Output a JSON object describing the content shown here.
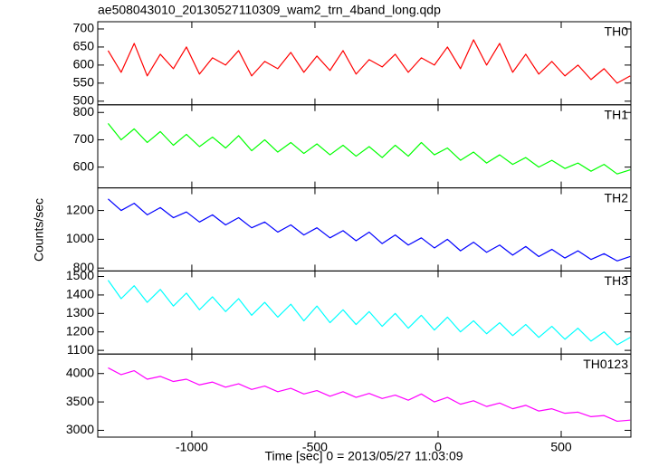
{
  "title": "ae508043010_20130527110309_wam2_trn_4band_long.qdp",
  "ylabel": "Counts/sec",
  "xlabel": "Time [sec] 0 = 2013/05/27 11:03:09",
  "chart_data": [
    {
      "type": "line",
      "xlim": [
        -1382,
        783
      ],
      "xticks": [
        -1000,
        -500,
        0,
        500
      ],
      "ylim": [
        490,
        720
      ],
      "yticks": [
        500,
        550,
        600,
        650,
        700
      ],
      "x": [
        -1340,
        -1287,
        -1234,
        -1181,
        -1128,
        -1075,
        -1022,
        -969,
        -916,
        -863,
        -810,
        -757,
        -704,
        -651,
        -598,
        -545,
        -492,
        -439,
        -386,
        -333,
        -280,
        -227,
        -174,
        -121,
        -68,
        -15,
        38,
        91,
        144,
        197,
        250,
        303,
        356,
        409,
        462,
        515,
        568,
        621,
        674,
        727,
        780
      ],
      "series": [
        {
          "name": "TH0",
          "color": "#ff0000",
          "values": [
            640,
            580,
            660,
            570,
            630,
            590,
            650,
            575,
            620,
            600,
            640,
            570,
            610,
            590,
            635,
            580,
            625,
            585,
            640,
            575,
            615,
            595,
            630,
            580,
            620,
            600,
            650,
            590,
            670,
            600,
            660,
            580,
            630,
            575,
            610,
            570,
            600,
            560,
            590,
            550,
            570
          ]
        }
      ]
    },
    {
      "type": "line",
      "xlim": [
        -1382,
        783
      ],
      "xticks": [
        -1000,
        -500,
        0,
        500
      ],
      "ylim": [
        524,
        828
      ],
      "yticks": [
        600,
        700,
        800
      ],
      "x": [
        -1340,
        -1287,
        -1234,
        -1181,
        -1128,
        -1075,
        -1022,
        -969,
        -916,
        -863,
        -810,
        -757,
        -704,
        -651,
        -598,
        -545,
        -492,
        -439,
        -386,
        -333,
        -280,
        -227,
        -174,
        -121,
        -68,
        -15,
        38,
        91,
        144,
        197,
        250,
        303,
        356,
        409,
        462,
        515,
        568,
        621,
        674,
        727,
        780
      ],
      "series": [
        {
          "name": "TH1",
          "color": "#00ff00",
          "values": [
            760,
            700,
            740,
            690,
            730,
            680,
            720,
            675,
            710,
            670,
            715,
            660,
            700,
            655,
            690,
            650,
            685,
            645,
            680,
            640,
            675,
            635,
            680,
            640,
            690,
            645,
            670,
            625,
            655,
            615,
            645,
            610,
            635,
            600,
            625,
            595,
            615,
            585,
            610,
            575,
            590
          ]
        }
      ]
    },
    {
      "type": "line",
      "xlim": [
        -1382,
        783
      ],
      "xticks": [
        -1000,
        -500,
        0,
        500
      ],
      "ylim": [
        780,
        1357
      ],
      "yticks": [
        800,
        1000,
        1200
      ],
      "x": [
        -1340,
        -1287,
        -1234,
        -1181,
        -1128,
        -1075,
        -1022,
        -969,
        -916,
        -863,
        -810,
        -757,
        -704,
        -651,
        -598,
        -545,
        -492,
        -439,
        -386,
        -333,
        -280,
        -227,
        -174,
        -121,
        -68,
        -15,
        38,
        91,
        144,
        197,
        250,
        303,
        356,
        409,
        462,
        515,
        568,
        621,
        674,
        727,
        780
      ],
      "series": [
        {
          "name": "TH2",
          "color": "#0000ff",
          "values": [
            1280,
            1200,
            1250,
            1170,
            1220,
            1150,
            1190,
            1120,
            1170,
            1100,
            1150,
            1080,
            1120,
            1050,
            1100,
            1030,
            1080,
            1010,
            1060,
            990,
            1050,
            970,
            1030,
            960,
            1010,
            940,
            1000,
            920,
            980,
            910,
            960,
            890,
            950,
            880,
            930,
            870,
            920,
            860,
            900,
            850,
            880
          ]
        }
      ]
    },
    {
      "type": "line",
      "xlim": [
        -1382,
        783
      ],
      "xticks": [
        -1000,
        -500,
        0,
        500
      ],
      "ylim": [
        1080,
        1530
      ],
      "yticks": [
        1100,
        1200,
        1300,
        1400,
        1500
      ],
      "x": [
        -1340,
        -1287,
        -1234,
        -1181,
        -1128,
        -1075,
        -1022,
        -969,
        -916,
        -863,
        -810,
        -757,
        -704,
        -651,
        -598,
        -545,
        -492,
        -439,
        -386,
        -333,
        -280,
        -227,
        -174,
        -121,
        -68,
        -15,
        38,
        91,
        144,
        197,
        250,
        303,
        356,
        409,
        462,
        515,
        568,
        621,
        674,
        727,
        780
      ],
      "series": [
        {
          "name": "TH3",
          "color": "#00ffff",
          "values": [
            1480,
            1380,
            1450,
            1360,
            1430,
            1340,
            1410,
            1320,
            1390,
            1310,
            1380,
            1290,
            1360,
            1280,
            1350,
            1260,
            1340,
            1250,
            1320,
            1240,
            1310,
            1230,
            1300,
            1220,
            1290,
            1210,
            1280,
            1200,
            1260,
            1190,
            1250,
            1180,
            1240,
            1170,
            1230,
            1160,
            1220,
            1150,
            1200,
            1130,
            1170
          ]
        }
      ]
    },
    {
      "type": "line",
      "xlim": [
        -1382,
        783
      ],
      "xticks": [
        -1000,
        -500,
        0,
        500
      ],
      "ylim": [
        2880,
        4343
      ],
      "yticks": [
        3000,
        3500,
        4000
      ],
      "x": [
        -1340,
        -1287,
        -1234,
        -1181,
        -1128,
        -1075,
        -1022,
        -969,
        -916,
        -863,
        -810,
        -757,
        -704,
        -651,
        -598,
        -545,
        -492,
        -439,
        -386,
        -333,
        -280,
        -227,
        -174,
        -121,
        -68,
        -15,
        38,
        91,
        144,
        197,
        250,
        303,
        356,
        409,
        462,
        515,
        568,
        621,
        674,
        727,
        780
      ],
      "series": [
        {
          "name": "TH0123",
          "color": "#ff00ff",
          "values": [
            4100,
            3980,
            4050,
            3900,
            3950,
            3860,
            3900,
            3800,
            3850,
            3760,
            3820,
            3720,
            3780,
            3680,
            3740,
            3640,
            3700,
            3600,
            3680,
            3580,
            3650,
            3560,
            3620,
            3530,
            3640,
            3500,
            3580,
            3460,
            3520,
            3420,
            3480,
            3380,
            3440,
            3340,
            3380,
            3300,
            3320,
            3240,
            3260,
            3160,
            3180
          ]
        }
      ]
    }
  ]
}
